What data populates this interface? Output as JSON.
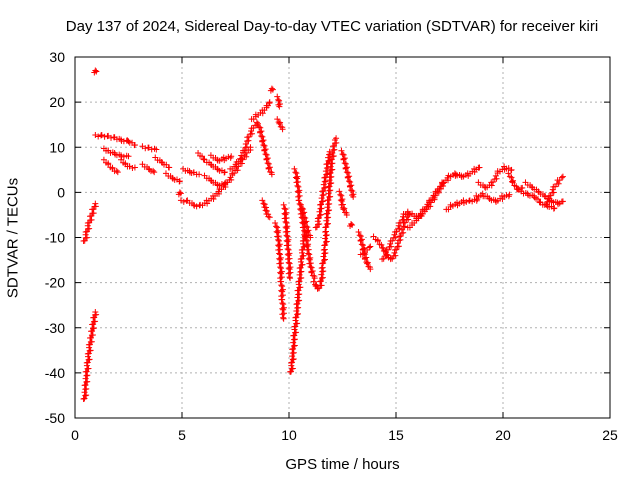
{
  "chart_data": {
    "type": "scatter",
    "title": "Day 137 of 2024, Sidereal Day-to-day VTEC variation (SDTVAR) for receiver kiri",
    "xlabel": "GPS time / hours",
    "ylabel": "SDTVAR / TECUs",
    "xlim": [
      0,
      25
    ],
    "ylim": [
      -50,
      30
    ],
    "xticks": [
      "0",
      "5",
      "10",
      "15",
      "20",
      "25"
    ],
    "yticks": [
      "30",
      "20",
      "10",
      "0",
      "-10",
      "-20",
      "-30",
      "-40",
      "-50"
    ],
    "grid": true,
    "marker": "+",
    "color": "#ff0000",
    "segments": [
      [
        [
          0.45,
          -11
        ],
        [
          0.55,
          -9
        ],
        [
          0.65,
          -7
        ],
        [
          0.75,
          -5.5
        ],
        [
          0.85,
          -4
        ],
        [
          0.95,
          -2.5
        ]
      ],
      [
        [
          0.45,
          -46
        ],
        [
          0.5,
          -43
        ],
        [
          0.55,
          -40
        ],
        [
          0.6,
          -38
        ],
        [
          0.65,
          -36
        ],
        [
          0.7,
          -34
        ],
        [
          0.75,
          -32.5
        ],
        [
          0.8,
          -31
        ],
        [
          0.85,
          -29.5
        ],
        [
          0.9,
          -28
        ],
        [
          0.95,
          -26.5
        ]
      ],
      [
        [
          0.95,
          27
        ]
      ],
      [
        [
          1.0,
          12.5
        ],
        [
          1.3,
          12.5
        ],
        [
          1.6,
          12.3
        ],
        [
          1.9,
          12
        ],
        [
          2.2,
          11.5
        ],
        [
          2.5,
          11.3
        ]
      ],
      [
        [
          1.4,
          9.5
        ],
        [
          1.6,
          9
        ],
        [
          1.9,
          8.5
        ],
        [
          2.2,
          8
        ],
        [
          2.5,
          8
        ]
      ],
      [
        [
          1.4,
          7
        ],
        [
          1.6,
          6
        ],
        [
          1.8,
          5
        ],
        [
          2.0,
          4.5
        ]
      ],
      [
        [
          2.2,
          7
        ],
        [
          2.4,
          6
        ],
        [
          2.6,
          5.5
        ],
        [
          2.8,
          5.5
        ]
      ],
      [
        [
          2.5,
          11.3
        ],
        [
          2.8,
          10.5
        ]
      ],
      [
        [
          3.2,
          10
        ],
        [
          3.5,
          9.7
        ],
        [
          3.8,
          9.5
        ]
      ],
      [
        [
          3.2,
          6
        ],
        [
          3.5,
          5
        ],
        [
          3.7,
          4.5
        ]
      ],
      [
        [
          3.8,
          7.5
        ],
        [
          4.1,
          6.5
        ],
        [
          4.4,
          5.5
        ]
      ],
      [
        [
          4.3,
          4
        ],
        [
          4.6,
          3
        ],
        [
          4.9,
          2.5
        ]
      ],
      [
        [
          4.9,
          0
        ]
      ],
      [
        [
          5.1,
          5
        ],
        [
          5.4,
          4.5
        ],
        [
          5.6,
          4.2
        ],
        [
          5.8,
          4
        ]
      ],
      [
        [
          5.0,
          -2
        ],
        [
          5.3,
          -2
        ],
        [
          5.6,
          -3
        ],
        [
          5.9,
          -3
        ],
        [
          6.2,
          -2
        ],
        [
          6.5,
          -1
        ],
        [
          6.8,
          0.5
        ],
        [
          7.1,
          2
        ],
        [
          7.4,
          4
        ],
        [
          7.6,
          5.5
        ],
        [
          7.8,
          7
        ],
        [
          8.0,
          8.5
        ],
        [
          8.2,
          10
        ]
      ],
      [
        [
          5.8,
          8.5
        ],
        [
          6.1,
          7
        ],
        [
          6.4,
          6
        ],
        [
          6.7,
          5
        ],
        [
          7.0,
          4.5
        ]
      ],
      [
        [
          6.1,
          3.5
        ],
        [
          6.4,
          2.5
        ],
        [
          6.7,
          1.5
        ],
        [
          7.0,
          2
        ]
      ],
      [
        [
          6.4,
          8
        ],
        [
          6.7,
          7
        ],
        [
          7.0,
          7.5
        ],
        [
          7.3,
          8
        ]
      ],
      [
        [
          7.3,
          5
        ],
        [
          7.6,
          6.5
        ],
        [
          7.9,
          9
        ],
        [
          8.1,
          12
        ],
        [
          8.3,
          14
        ],
        [
          8.5,
          15.5
        ]
      ],
      [
        [
          8.3,
          16
        ],
        [
          8.5,
          17
        ],
        [
          8.8,
          18
        ],
        [
          9.0,
          19
        ],
        [
          9.1,
          20
        ]
      ],
      [
        [
          8.6,
          15
        ],
        [
          8.7,
          13
        ],
        [
          8.8,
          11
        ],
        [
          8.9,
          9
        ],
        [
          9.0,
          7
        ],
        [
          9.1,
          5
        ],
        [
          9.2,
          4
        ]
      ],
      [
        [
          8.8,
          -2
        ],
        [
          8.9,
          -3.5
        ],
        [
          9.0,
          -5
        ],
        [
          9.1,
          -5.5
        ]
      ],
      [
        [
          9.2,
          23
        ]
      ],
      [
        [
          9.5,
          21
        ],
        [
          9.55,
          19
        ]
      ],
      [
        [
          9.5,
          16
        ],
        [
          9.6,
          15
        ],
        [
          9.7,
          14
        ]
      ],
      [
        [
          9.4,
          -7
        ],
        [
          9.5,
          -10
        ],
        [
          9.55,
          -13
        ],
        [
          9.6,
          -16
        ],
        [
          9.65,
          -20
        ],
        [
          9.7,
          -24
        ],
        [
          9.75,
          -28
        ]
      ],
      [
        [
          9.8,
          -3
        ],
        [
          9.85,
          -6
        ],
        [
          9.9,
          -9
        ],
        [
          9.95,
          -12
        ],
        [
          10.0,
          -15
        ],
        [
          10.05,
          -19
        ]
      ],
      [
        [
          10.1,
          -40
        ],
        [
          10.15,
          -38
        ],
        [
          10.2,
          -35
        ],
        [
          10.25,
          -32
        ],
        [
          10.3,
          -30
        ],
        [
          10.35,
          -28
        ],
        [
          10.4,
          -25
        ],
        [
          10.45,
          -22
        ],
        [
          10.5,
          -20
        ],
        [
          10.55,
          -17
        ],
        [
          10.6,
          -15
        ],
        [
          10.65,
          -13
        ],
        [
          10.7,
          -11
        ],
        [
          10.75,
          -9
        ]
      ],
      [
        [
          10.3,
          5
        ],
        [
          10.4,
          2
        ],
        [
          10.5,
          -2
        ],
        [
          10.6,
          -5
        ],
        [
          10.7,
          -8
        ],
        [
          10.8,
          -10
        ],
        [
          10.9,
          -13
        ],
        [
          11.0,
          -16
        ],
        [
          11.1,
          -18
        ],
        [
          11.2,
          -19
        ]
      ],
      [
        [
          10.6,
          -3
        ],
        [
          10.7,
          -5
        ],
        [
          10.8,
          -7
        ],
        [
          10.9,
          -9
        ],
        [
          11.0,
          -10
        ]
      ],
      [
        [
          11.2,
          -20
        ],
        [
          11.3,
          -21
        ],
        [
          11.4,
          -21.5
        ],
        [
          11.5,
          -20
        ],
        [
          11.6,
          -16
        ],
        [
          11.7,
          -12
        ],
        [
          11.75,
          -8
        ],
        [
          11.8,
          -5
        ],
        [
          11.85,
          -2
        ],
        [
          11.9,
          1
        ],
        [
          11.95,
          4
        ],
        [
          12.0,
          7
        ],
        [
          12.1,
          10
        ],
        [
          12.2,
          12
        ]
      ],
      [
        [
          11.3,
          -8
        ],
        [
          11.4,
          -6
        ],
        [
          11.5,
          -3
        ],
        [
          11.6,
          0
        ],
        [
          11.7,
          3
        ],
        [
          11.8,
          6
        ],
        [
          11.9,
          9
        ]
      ],
      [
        [
          12.4,
          0
        ],
        [
          12.5,
          -3
        ],
        [
          12.6,
          -4
        ],
        [
          12.7,
          -5
        ]
      ],
      [
        [
          12.5,
          9
        ],
        [
          12.6,
          7
        ],
        [
          12.7,
          5
        ],
        [
          12.8,
          3
        ],
        [
          12.9,
          1
        ],
        [
          13.0,
          -1
        ]
      ],
      [
        [
          12.9,
          -7
        ]
      ],
      [
        [
          13.3,
          -9
        ],
        [
          13.4,
          -11
        ],
        [
          13.5,
          -13
        ],
        [
          13.6,
          -15
        ],
        [
          13.7,
          -16
        ],
        [
          13.8,
          -17
        ]
      ],
      [
        [
          13.4,
          -14
        ],
        [
          13.6,
          -13
        ],
        [
          13.8,
          -12
        ]
      ],
      [
        [
          14.0,
          -10
        ],
        [
          14.2,
          -11
        ],
        [
          14.4,
          -12.5
        ],
        [
          14.6,
          -14
        ],
        [
          14.8,
          -15
        ],
        [
          15.0,
          -13
        ],
        [
          15.2,
          -10
        ],
        [
          15.4,
          -7
        ],
        [
          15.6,
          -5
        ]
      ],
      [
        [
          14.4,
          -15
        ],
        [
          14.6,
          -13
        ],
        [
          14.8,
          -11
        ],
        [
          15.0,
          -9
        ],
        [
          15.2,
          -7
        ],
        [
          15.4,
          -5
        ],
        [
          15.6,
          -4.5
        ],
        [
          15.8,
          -5
        ],
        [
          16.0,
          -5.5
        ],
        [
          16.2,
          -5
        ],
        [
          16.4,
          -4
        ],
        [
          16.6,
          -2.5
        ],
        [
          16.8,
          -1
        ],
        [
          17.0,
          0.5
        ],
        [
          17.2,
          2
        ]
      ],
      [
        [
          15.6,
          -8
        ],
        [
          15.8,
          -7
        ],
        [
          16.0,
          -6
        ],
        [
          16.3,
          -4
        ],
        [
          16.6,
          -2
        ],
        [
          16.9,
          0
        ],
        [
          17.2,
          2
        ],
        [
          17.5,
          3.5
        ],
        [
          17.8,
          4
        ]
      ],
      [
        [
          17.4,
          -4
        ],
        [
          17.6,
          -3
        ],
        [
          17.9,
          -2.5
        ],
        [
          18.2,
          -2
        ],
        [
          18.5,
          -2
        ],
        [
          18.8,
          -1.5
        ]
      ],
      [
        [
          17.8,
          4
        ],
        [
          18.1,
          3.5
        ],
        [
          18.4,
          4
        ],
        [
          18.7,
          5
        ],
        [
          18.9,
          5.5
        ]
      ],
      [
        [
          18.8,
          -1
        ],
        [
          19.1,
          -0.5
        ],
        [
          19.4,
          -1.5
        ],
        [
          19.7,
          -2
        ],
        [
          20.0,
          -1
        ],
        [
          20.3,
          -0.5
        ]
      ],
      [
        [
          18.9,
          2
        ],
        [
          19.2,
          1
        ],
        [
          19.5,
          2
        ],
        [
          19.8,
          4.5
        ],
        [
          20.1,
          5.5
        ],
        [
          20.4,
          5
        ]
      ],
      [
        [
          20.3,
          4
        ],
        [
          20.5,
          2
        ],
        [
          20.7,
          0.5
        ],
        [
          20.9,
          1
        ]
      ],
      [
        [
          20.9,
          0
        ],
        [
          21.2,
          -0.5
        ],
        [
          21.5,
          -1
        ],
        [
          21.8,
          -2.5
        ],
        [
          22.1,
          -3
        ],
        [
          22.4,
          -3.5
        ]
      ],
      [
        [
          21.1,
          2
        ],
        [
          21.4,
          1
        ],
        [
          21.7,
          0
        ],
        [
          22.0,
          -1
        ],
        [
          22.3,
          -2
        ],
        [
          22.6,
          -2.5
        ],
        [
          22.8,
          -2
        ]
      ],
      [
        [
          22.0,
          -3
        ],
        [
          22.2,
          -1
        ],
        [
          22.4,
          1
        ],
        [
          22.6,
          2.5
        ],
        [
          22.8,
          3.5
        ]
      ]
    ]
  }
}
